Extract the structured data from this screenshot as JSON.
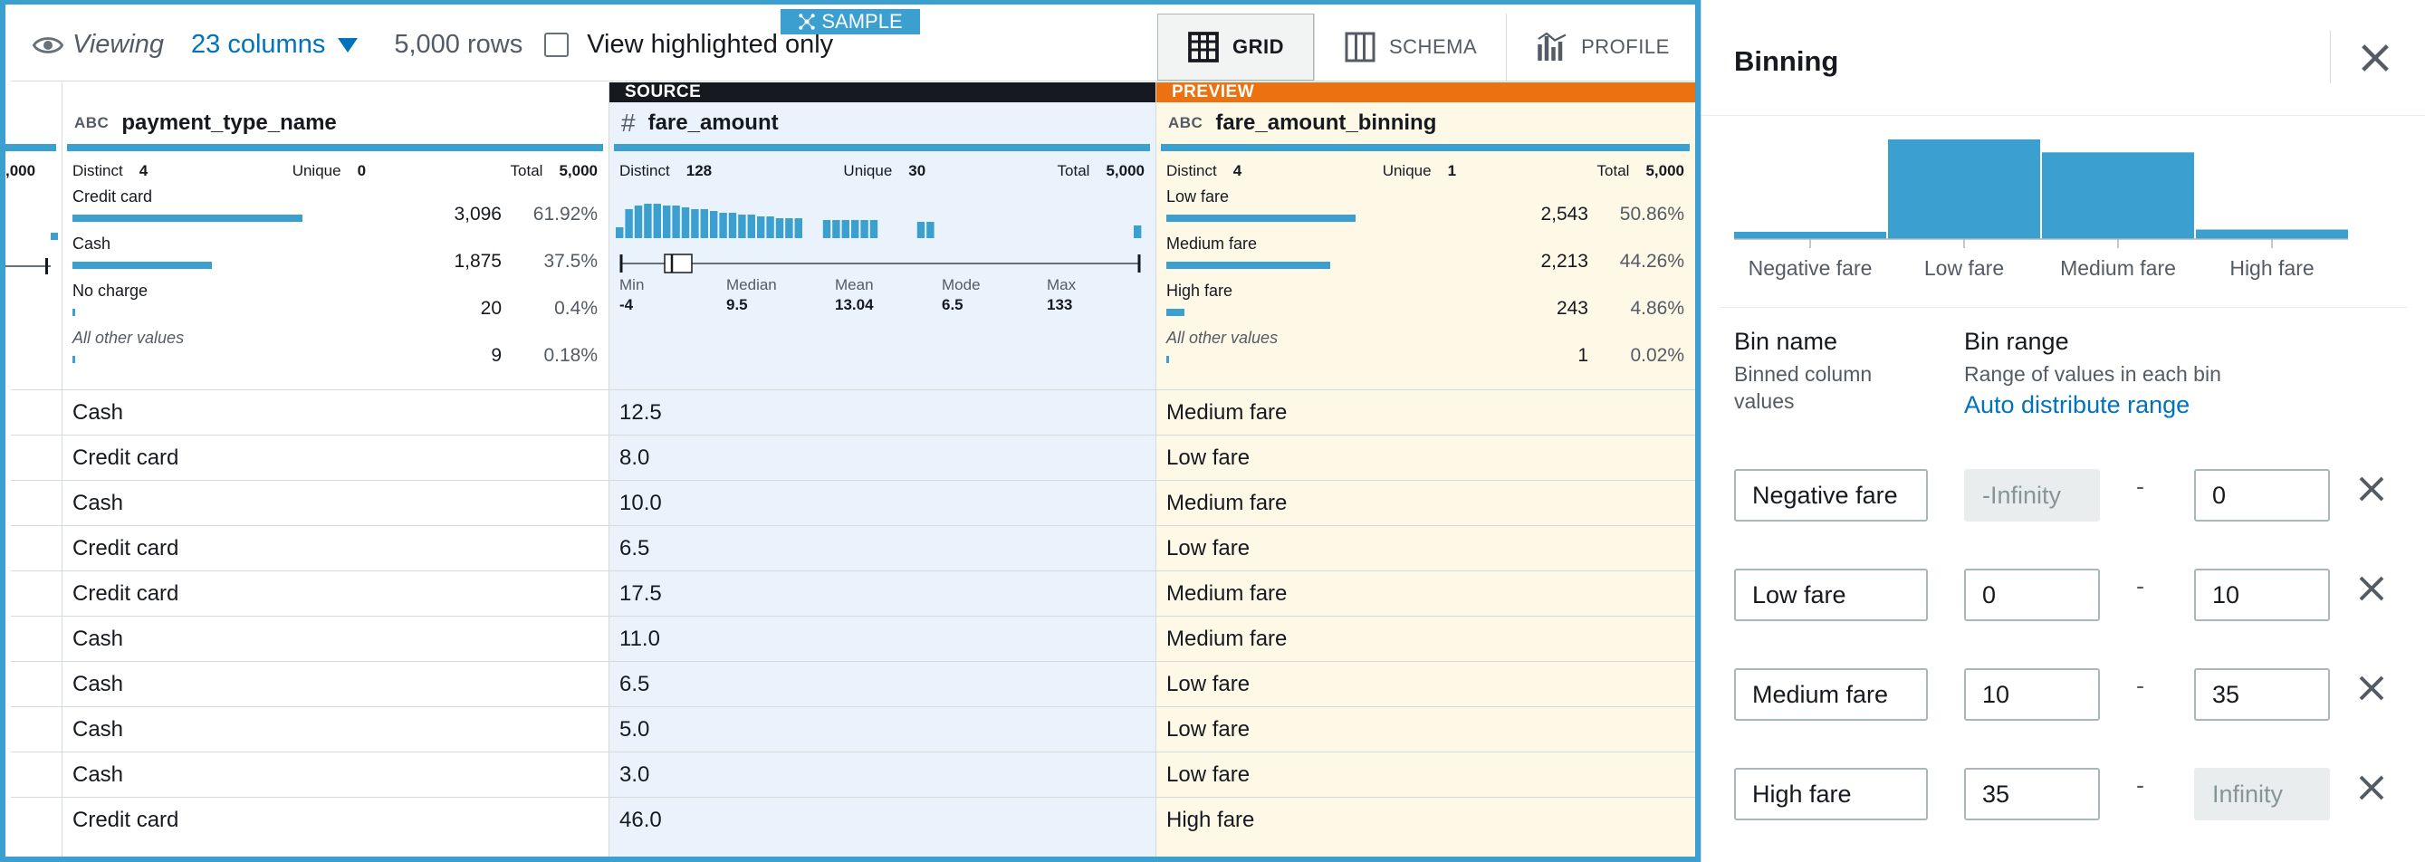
{
  "toolbar": {
    "sample_label": "SAMPLE",
    "viewing_label": "Viewing",
    "columns_label": "23 columns",
    "rows_label": "5,000 rows",
    "highlight_label": "View highlighted only",
    "tabs": [
      {
        "label": "GRID",
        "icon": "grid-icon"
      },
      {
        "label": "SCHEMA",
        "icon": "schema-icon"
      },
      {
        "label": "PROFILE",
        "icon": "profile-icon"
      }
    ]
  },
  "columns": {
    "left_stub": {
      "total": ",000"
    },
    "payment": {
      "type": "ABC",
      "name": "payment_type_name",
      "distinct_label": "Distinct",
      "distinct": "4",
      "unique_label": "Unique",
      "unique": "0",
      "total_label": "Total",
      "total": "5,000",
      "values": [
        {
          "name": "Credit card",
          "count": "3,096",
          "pct": "61.92%",
          "frac": 0.6192
        },
        {
          "name": "Cash",
          "count": "1,875",
          "pct": "37.5%",
          "frac": 0.375
        },
        {
          "name": "No charge",
          "count": "20",
          "pct": "0.4%",
          "frac": 0.004
        },
        {
          "name": "All other values",
          "count": "9",
          "pct": "0.18%",
          "frac": 0.0018
        }
      ]
    },
    "fare": {
      "banner": "SOURCE",
      "type": "#",
      "name": "fare_amount",
      "distinct_label": "Distinct",
      "distinct": "128",
      "unique_label": "Unique",
      "unique": "30",
      "total_label": "Total",
      "total": "5,000",
      "stats": [
        {
          "label": "Min",
          "value": "-4"
        },
        {
          "label": "Median",
          "value": "9.5"
        },
        {
          "label": "Mean",
          "value": "13.04"
        },
        {
          "label": "Mode",
          "value": "6.5"
        },
        {
          "label": "Max",
          "value": "133"
        }
      ]
    },
    "binning": {
      "banner": "PREVIEW",
      "type": "ABC",
      "name": "fare_amount_binning",
      "distinct_label": "Distinct",
      "distinct": "4",
      "unique_label": "Unique",
      "unique": "1",
      "total_label": "Total",
      "total": "5,000",
      "values": [
        {
          "name": "Low fare",
          "count": "2,543",
          "pct": "50.86%",
          "frac": 0.5086
        },
        {
          "name": "Medium fare",
          "count": "2,213",
          "pct": "44.26%",
          "frac": 0.4426
        },
        {
          "name": "High fare",
          "count": "243",
          "pct": "4.86%",
          "frac": 0.0486
        },
        {
          "name": "All other values",
          "count": "1",
          "pct": "0.02%",
          "frac": 0.0002
        }
      ]
    }
  },
  "rows": [
    {
      "payment": "Cash",
      "fare": "12.5",
      "bin": "Medium fare"
    },
    {
      "payment": "Credit card",
      "fare": "8.0",
      "bin": "Low fare"
    },
    {
      "payment": "Cash",
      "fare": "10.0",
      "bin": "Medium fare"
    },
    {
      "payment": "Credit card",
      "fare": "6.5",
      "bin": "Low fare"
    },
    {
      "payment": "Credit card",
      "fare": "17.5",
      "bin": "Medium fare"
    },
    {
      "payment": "Cash",
      "fare": "11.0",
      "bin": "Medium fare"
    },
    {
      "payment": "Cash",
      "fare": "6.5",
      "bin": "Low fare"
    },
    {
      "payment": "Cash",
      "fare": "5.0",
      "bin": "Low fare"
    },
    {
      "payment": "Cash",
      "fare": "3.0",
      "bin": "Low fare"
    },
    {
      "payment": "Credit card",
      "fare": "46.0",
      "bin": "High fare"
    }
  ],
  "panel": {
    "title": "Binning",
    "histogram": {
      "categories": [
        "Negative fare",
        "Low fare",
        "Medium fare",
        "High fare"
      ],
      "fractions": [
        0.0002,
        0.5086,
        0.4426,
        0.0486
      ]
    },
    "bin_name_label": "Bin name",
    "bin_name_sub": "Binned column values",
    "bin_range_label": "Bin range",
    "bin_range_sub": "Range of values in each bin",
    "auto_distribute": "Auto distribute range",
    "bins": [
      {
        "name": "Negative fare",
        "from": "-Infinity",
        "to": "0",
        "from_disabled": true,
        "to_disabled": false
      },
      {
        "name": "Low fare",
        "from": "0",
        "to": "10",
        "from_disabled": false,
        "to_disabled": false
      },
      {
        "name": "Medium fare",
        "from": "10",
        "to": "35",
        "from_disabled": false,
        "to_disabled": false
      },
      {
        "name": "High fare",
        "from": "35",
        "to": "Infinity",
        "from_disabled": false,
        "to_disabled": true
      }
    ],
    "dash": "-"
  },
  "colors": {
    "accent": "#3b9fd0",
    "source": "#16191f",
    "preview": "#ec7211",
    "source_bg": "#eaf3fc",
    "preview_bg": "#fef8e6",
    "link": "#0073bb"
  }
}
